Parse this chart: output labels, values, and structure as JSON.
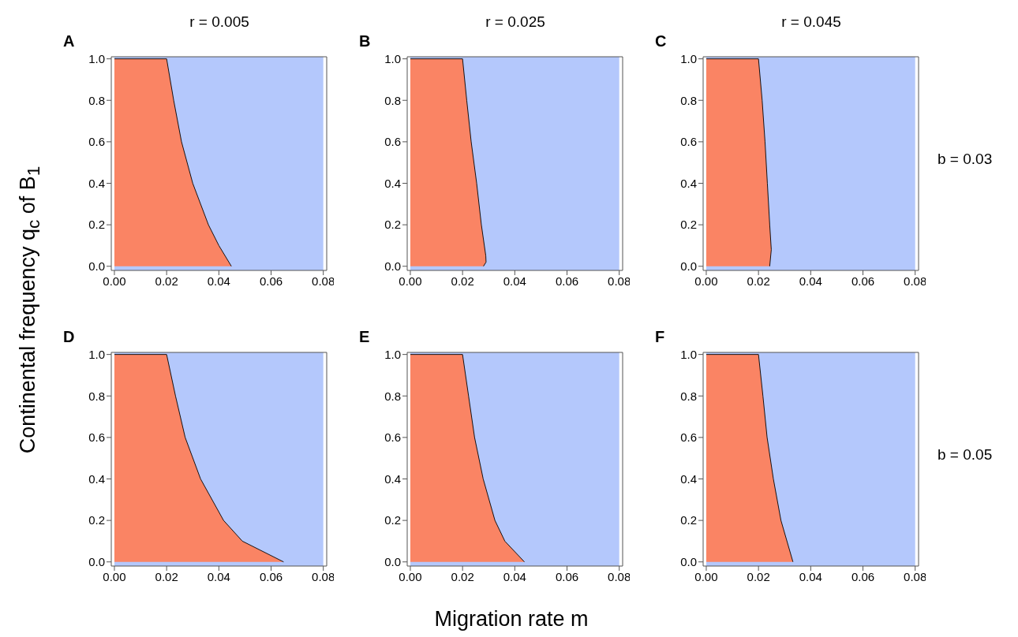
{
  "chart_data": [
    {
      "type": "area",
      "title": "A",
      "subtitle": "r = 0.005",
      "ylabel": "Continental frequency q$_{c}$ of B$_{1}$",
      "xlim": [
        -0.0012,
        0.0813
      ],
      "ylim": [
        -0.02,
        1.01
      ],
      "xticks": [
        {
          "value": 0,
          "label": "0.00"
        },
        {
          "value": 0.02,
          "label": "0.02"
        },
        {
          "value": 0.04,
          "label": "0.04"
        },
        {
          "value": 0.06,
          "label": "0.06"
        },
        {
          "value": 0.08,
          "label": "0.08"
        }
      ],
      "yticks": [
        {
          "value": 0,
          "label": "0.0"
        },
        {
          "value": 0.2,
          "label": "0.2"
        },
        {
          "value": 0.4,
          "label": "0.4"
        },
        {
          "value": 0.6,
          "label": "0.6"
        },
        {
          "value": 0.8,
          "label": "0.8"
        },
        {
          "value": 1,
          "label": "1.0"
        }
      ],
      "bands": [
        {
          "axis": "x",
          "from": 0,
          "to": 0.08,
          "color": "#b4c8fc"
        }
      ],
      "series": [
        {
          "color": "#fa8464",
          "x": [
            0,
            0.02,
            0.0227,
            0.0257,
            0.03,
            0.036,
            0.04,
            0.0448
          ],
          "values": [
            1,
            1,
            0.8,
            0.6,
            0.4,
            0.2,
            0.1,
            0
          ]
        }
      ]
    },
    {
      "type": "area",
      "title": "B",
      "subtitle": "r = 0.025",
      "xlim": [
        -0.0012,
        0.0813
      ],
      "ylim": [
        -0.02,
        1.01
      ],
      "xticks": [
        {
          "value": 0,
          "label": "0.00"
        },
        {
          "value": 0.02,
          "label": "0.02"
        },
        {
          "value": 0.04,
          "label": "0.04"
        },
        {
          "value": 0.06,
          "label": "0.06"
        },
        {
          "value": 0.08,
          "label": "0.08"
        }
      ],
      "yticks": [
        {
          "value": 0,
          "label": "0.0"
        },
        {
          "value": 0.2,
          "label": "0.2"
        },
        {
          "value": 0.4,
          "label": "0.4"
        },
        {
          "value": 0.6,
          "label": "0.6"
        },
        {
          "value": 0.8,
          "label": "0.8"
        },
        {
          "value": 1,
          "label": "1.0"
        }
      ],
      "bands": [
        {
          "axis": "x",
          "from": 0,
          "to": 0.08,
          "color": "#b4c8fc"
        }
      ],
      "series": [
        {
          "color": "#fa8464",
          "x": [
            0,
            0.02,
            0.0216,
            0.0233,
            0.0254,
            0.0272,
            0.0289,
            0.029,
            0.028
          ],
          "values": [
            1,
            1,
            0.8,
            0.6,
            0.4,
            0.2,
            0.05,
            0.02,
            0
          ]
        }
      ]
    },
    {
      "type": "area",
      "title": "C",
      "subtitle": "r = 0.045",
      "annotations": [
        "b = 0.03"
      ],
      "xlim": [
        -0.0012,
        0.0813
      ],
      "ylim": [
        -0.02,
        1.01
      ],
      "xticks": [
        {
          "value": 0,
          "label": "0.00"
        },
        {
          "value": 0.02,
          "label": "0.02"
        },
        {
          "value": 0.04,
          "label": "0.04"
        },
        {
          "value": 0.06,
          "label": "0.06"
        },
        {
          "value": 0.08,
          "label": "0.08"
        }
      ],
      "yticks": [
        {
          "value": 0,
          "label": "0.0"
        },
        {
          "value": 0.2,
          "label": "0.2"
        },
        {
          "value": 0.4,
          "label": "0.4"
        },
        {
          "value": 0.6,
          "label": "0.6"
        },
        {
          "value": 0.8,
          "label": "0.8"
        },
        {
          "value": 1,
          "label": "1.0"
        }
      ],
      "bands": [
        {
          "axis": "x",
          "from": 0,
          "to": 0.08,
          "color": "#b4c8fc"
        }
      ],
      "series": [
        {
          "color": "#fa8464",
          "x": [
            0,
            0.02,
            0.0214,
            0.0225,
            0.0234,
            0.0243,
            0.0249,
            0.0243
          ],
          "values": [
            1,
            1,
            0.8,
            0.6,
            0.4,
            0.2,
            0.08,
            0
          ]
        }
      ]
    },
    {
      "type": "area",
      "title": "D",
      "xlim": [
        -0.0012,
        0.0813
      ],
      "ylim": [
        -0.02,
        1.01
      ],
      "xticks": [
        {
          "value": 0,
          "label": "0.00"
        },
        {
          "value": 0.02,
          "label": "0.02"
        },
        {
          "value": 0.04,
          "label": "0.04"
        },
        {
          "value": 0.06,
          "label": "0.06"
        },
        {
          "value": 0.08,
          "label": "0.08"
        }
      ],
      "yticks": [
        {
          "value": 0,
          "label": "0.0"
        },
        {
          "value": 0.2,
          "label": "0.2"
        },
        {
          "value": 0.4,
          "label": "0.4"
        },
        {
          "value": 0.6,
          "label": "0.6"
        },
        {
          "value": 0.8,
          "label": "0.8"
        },
        {
          "value": 1,
          "label": "1.0"
        }
      ],
      "bands": [
        {
          "axis": "x",
          "from": 0,
          "to": 0.08,
          "color": "#b4c8fc"
        }
      ],
      "series": [
        {
          "color": "#fa8464",
          "x": [
            0,
            0.02,
            0.0234,
            0.0271,
            0.033,
            0.0418,
            0.049,
            0.0648
          ],
          "values": [
            1,
            1,
            0.8,
            0.6,
            0.4,
            0.2,
            0.1,
            0
          ]
        }
      ]
    },
    {
      "type": "area",
      "title": "E",
      "xlabel": "Migration rate m",
      "xlim": [
        -0.0012,
        0.0813
      ],
      "ylim": [
        -0.02,
        1.01
      ],
      "xticks": [
        {
          "value": 0,
          "label": "0.00"
        },
        {
          "value": 0.02,
          "label": "0.02"
        },
        {
          "value": 0.04,
          "label": "0.04"
        },
        {
          "value": 0.06,
          "label": "0.06"
        },
        {
          "value": 0.08,
          "label": "0.08"
        }
      ],
      "yticks": [
        {
          "value": 0,
          "label": "0.0"
        },
        {
          "value": 0.2,
          "label": "0.2"
        },
        {
          "value": 0.4,
          "label": "0.4"
        },
        {
          "value": 0.6,
          "label": "0.6"
        },
        {
          "value": 0.8,
          "label": "0.8"
        },
        {
          "value": 1,
          "label": "1.0"
        }
      ],
      "bands": [
        {
          "axis": "x",
          "from": 0,
          "to": 0.08,
          "color": "#b4c8fc"
        }
      ],
      "series": [
        {
          "color": "#fa8464",
          "x": [
            0,
            0.02,
            0.0223,
            0.0246,
            0.0279,
            0.0324,
            0.0362,
            0.0437
          ],
          "values": [
            1,
            1,
            0.8,
            0.6,
            0.4,
            0.2,
            0.1,
            0
          ]
        }
      ]
    },
    {
      "type": "area",
      "title": "F",
      "annotations": [
        "b = 0.05"
      ],
      "xlim": [
        -0.0012,
        0.0813
      ],
      "ylim": [
        -0.02,
        1.01
      ],
      "xticks": [
        {
          "value": 0,
          "label": "0.00"
        },
        {
          "value": 0.02,
          "label": "0.02"
        },
        {
          "value": 0.04,
          "label": "0.04"
        },
        {
          "value": 0.06,
          "label": "0.06"
        },
        {
          "value": 0.08,
          "label": "0.08"
        }
      ],
      "yticks": [
        {
          "value": 0,
          "label": "0.0"
        },
        {
          "value": 0.2,
          "label": "0.2"
        },
        {
          "value": 0.4,
          "label": "0.4"
        },
        {
          "value": 0.6,
          "label": "0.6"
        },
        {
          "value": 0.8,
          "label": "0.8"
        },
        {
          "value": 1,
          "label": "1.0"
        }
      ],
      "bands": [
        {
          "axis": "x",
          "from": 0,
          "to": 0.08,
          "color": "#b4c8fc"
        }
      ],
      "series": [
        {
          "color": "#fa8464",
          "x": [
            0,
            0.02,
            0.0217,
            0.0233,
            0.0257,
            0.0286,
            0.0332
          ],
          "values": [
            1,
            1,
            0.8,
            0.6,
            0.4,
            0.2,
            0
          ]
        }
      ]
    }
  ]
}
